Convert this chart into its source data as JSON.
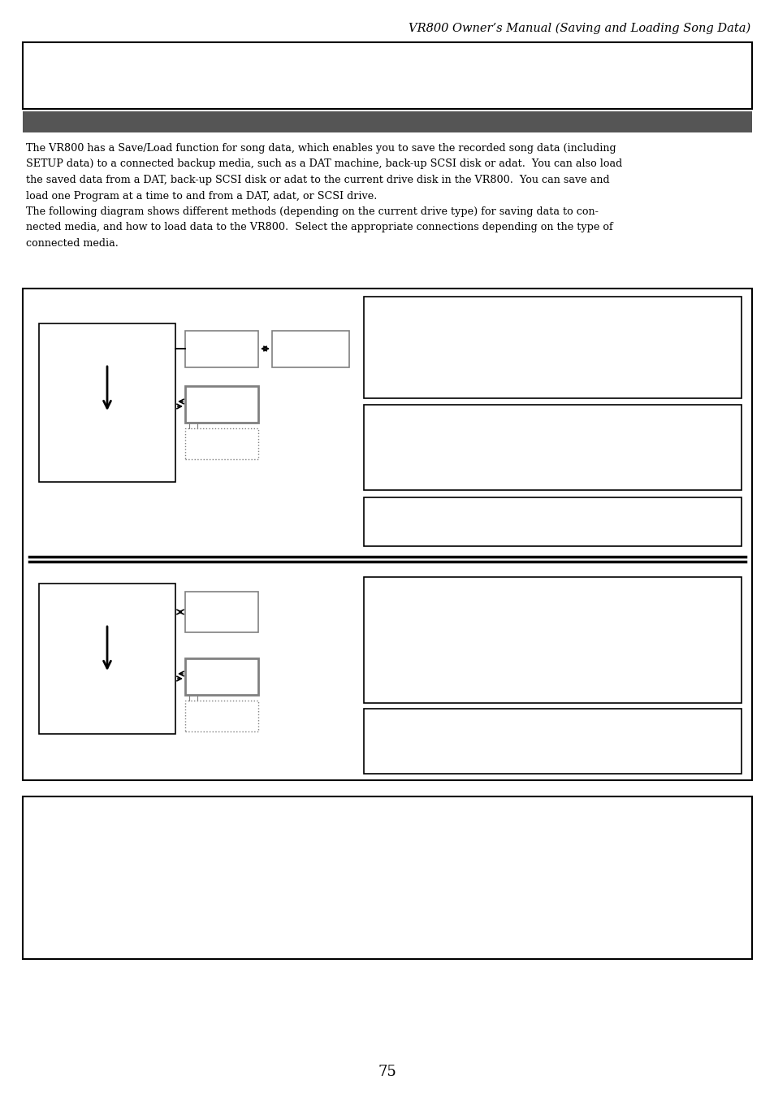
{
  "page_title": "VR800 Owner’s Manual (Saving and Loading Song Data)",
  "page_number": "75",
  "background_color": "#ffffff",
  "dark_bar_color": "#555555",
  "body_text_lines": [
    "The VR800 has a Save/Load function for song data, which enables you to save the recorded song data (including",
    "SETUP data) to a connected backup media, such as a DAT machine, back-up SCSI disk or adat.  You can also load",
    "the saved data from a DAT, back-up SCSI disk or adat to the current drive disk in the VR800.  You can save and",
    "load one Program at a time to and from a DAT, adat, or SCSI drive.",
    "The following diagram shows different methods (depending on the current drive type) for saving data to con-",
    "nected media, and how to load data to the VR800.  Select the appropriate connections depending on the type of",
    "connected media."
  ]
}
